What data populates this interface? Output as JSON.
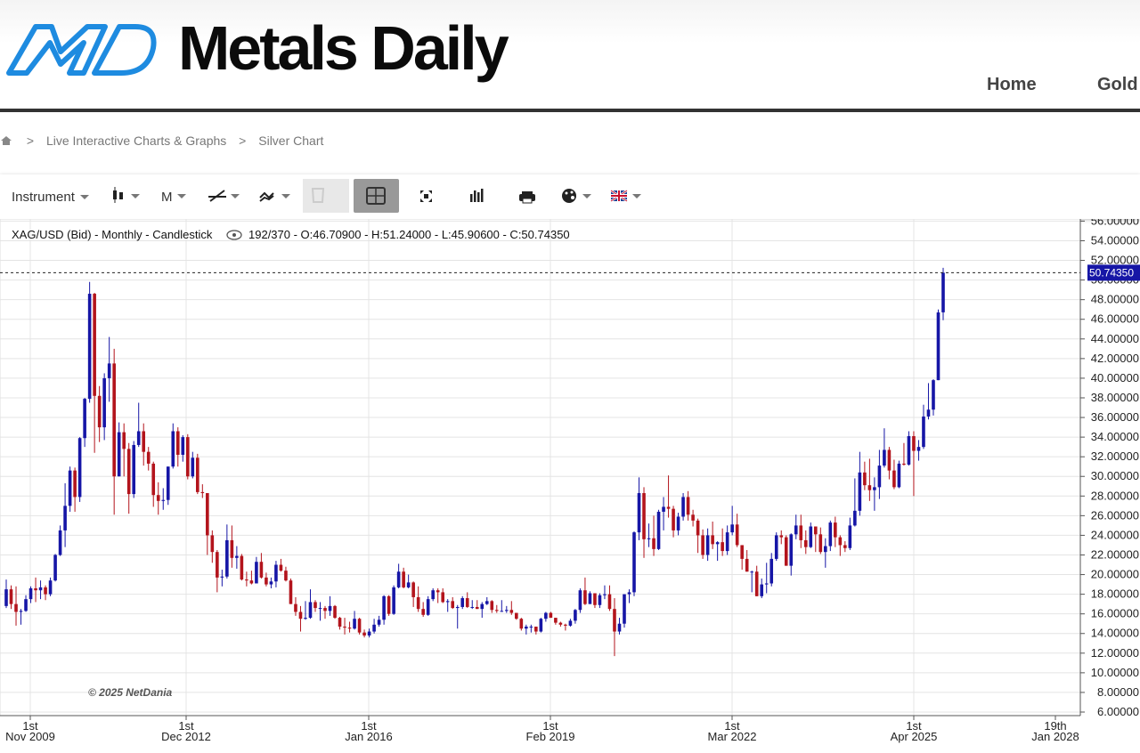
{
  "header": {
    "brand": "Metals Daily",
    "nav": [
      "Home",
      "Gold"
    ]
  },
  "breadcrumb": {
    "separator": ">",
    "items": [
      "Live Interactive Charts & Graphs",
      "Silver Chart"
    ]
  },
  "toolbar": {
    "instrument": "Instrument",
    "period": "M"
  },
  "chart_data": {
    "type": "candlestick",
    "title": "XAG/USD (Bid) - Monthly - Candlestick",
    "info": "192/370 - O:46.70900 - H:51.24000 - L:45.90600 - C:50.74350",
    "copyright": "© 2025 NetDania",
    "last_label": "50.74350",
    "up_color": "#1616a6",
    "down_color": "#b3141c",
    "ylim": [
      6,
      56.4
    ],
    "yticks": [
      {
        "value": 56,
        "label": "56.00000"
      },
      {
        "value": 54,
        "label": "54.00000"
      },
      {
        "value": 52,
        "label": "52.00000"
      },
      {
        "value": 50,
        "label": "50.00000"
      },
      {
        "value": 48,
        "label": "48.00000"
      },
      {
        "value": 46,
        "label": "46.00000"
      },
      {
        "value": 44,
        "label": "44.00000"
      },
      {
        "value": 42,
        "label": "42.00000"
      },
      {
        "value": 40,
        "label": "40.00000"
      },
      {
        "value": 38,
        "label": "38.00000"
      },
      {
        "value": 36,
        "label": "36.00000"
      },
      {
        "value": 34,
        "label": "34.00000"
      },
      {
        "value": 32,
        "label": "32.00000"
      },
      {
        "value": 30,
        "label": "30.00000"
      },
      {
        "value": 28,
        "label": "28.00000"
      },
      {
        "value": 26,
        "label": "26.00000"
      },
      {
        "value": 24,
        "label": "24.00000"
      },
      {
        "value": 22,
        "label": "22.00000"
      },
      {
        "value": 20,
        "label": "20.00000"
      },
      {
        "value": 18,
        "label": "18.00000"
      },
      {
        "value": 16,
        "label": "16.00000"
      },
      {
        "value": 14,
        "label": "14.00000"
      },
      {
        "value": 12,
        "label": "12.00000"
      },
      {
        "value": 10,
        "label": "10.00000"
      },
      {
        "value": 8,
        "label": "8.00000"
      },
      {
        "value": 6,
        "label": "6.00000"
      }
    ],
    "xtick_labels": [
      [
        "1st",
        "Nov 2009"
      ],
      [
        "1st",
        "Dec 2012"
      ],
      [
        "1st",
        "Jan 2016"
      ],
      [
        "1st",
        "Feb 2019"
      ],
      [
        "1st",
        "Mar 2022"
      ],
      [
        "1st",
        "Apr 2025"
      ],
      [
        "19th",
        "Jan 2028"
      ]
    ],
    "candles": [
      [
        16.8,
        19.5,
        16.6,
        18.5
      ],
      [
        18.5,
        18.9,
        16.5,
        17.0
      ],
      [
        17.0,
        18.8,
        14.8,
        16.2
      ],
      [
        16.2,
        16.5,
        14.9,
        16.3
      ],
      [
        16.3,
        17.9,
        16.2,
        17.5
      ],
      [
        17.5,
        18.8,
        17.1,
        18.6
      ],
      [
        18.6,
        19.7,
        17.2,
        18.4
      ],
      [
        18.4,
        19.4,
        17.5,
        18.7
      ],
      [
        18.7,
        18.9,
        17.4,
        18.0
      ],
      [
        18.0,
        19.7,
        17.8,
        19.4
      ],
      [
        19.4,
        22.1,
        19.3,
        22.0
      ],
      [
        22.0,
        25.0,
        21.9,
        24.5
      ],
      [
        24.5,
        29.3,
        22.8,
        27.0
      ],
      [
        27.0,
        31.0,
        26.4,
        30.6
      ],
      [
        30.6,
        30.9,
        26.4,
        27.9
      ],
      [
        27.9,
        34.0,
        27.4,
        33.9
      ],
      [
        33.9,
        38.0,
        33.0,
        37.9
      ],
      [
        37.9,
        49.8,
        37.5,
        48.6
      ],
      [
        48.6,
        48.7,
        32.4,
        38.2
      ],
      [
        38.2,
        39.2,
        33.5,
        35.0
      ],
      [
        35.0,
        40.5,
        33.7,
        40.0
      ],
      [
        40.0,
        44.2,
        37.6,
        41.5
      ],
      [
        41.5,
        43.0,
        26.1,
        30.0
      ],
      [
        30.0,
        35.5,
        30.0,
        34.5
      ],
      [
        34.5,
        35.4,
        30.0,
        32.8
      ],
      [
        32.8,
        33.4,
        26.2,
        28.2
      ],
      [
        28.2,
        33.6,
        27.8,
        33.2
      ],
      [
        33.2,
        37.5,
        33.0,
        34.6
      ],
      [
        34.6,
        35.4,
        31.1,
        32.5
      ],
      [
        32.5,
        33.0,
        30.6,
        31.3
      ],
      [
        31.3,
        31.5,
        26.9,
        28.1
      ],
      [
        28.1,
        29.4,
        26.1,
        27.5
      ],
      [
        27.5,
        28.8,
        26.6,
        27.6
      ],
      [
        27.6,
        31.0,
        27.1,
        31.0
      ],
      [
        31.0,
        35.4,
        30.8,
        34.6
      ],
      [
        34.6,
        35.0,
        31.0,
        32.2
      ],
      [
        32.2,
        34.2,
        31.5,
        34.0
      ],
      [
        34.0,
        34.3,
        29.7,
        30.0
      ],
      [
        30.0,
        32.5,
        29.8,
        31.9
      ],
      [
        31.9,
        32.3,
        28.2,
        28.4
      ],
      [
        28.4,
        29.2,
        27.8,
        28.3
      ],
      [
        28.3,
        28.3,
        22.0,
        24.0
      ],
      [
        24.0,
        24.5,
        21.2,
        22.3
      ],
      [
        22.3,
        22.5,
        18.2,
        19.7
      ],
      [
        19.7,
        20.5,
        18.8,
        19.8
      ],
      [
        19.8,
        25.1,
        19.6,
        23.5
      ],
      [
        23.5,
        25.0,
        20.7,
        21.7
      ],
      [
        21.7,
        22.9,
        20.6,
        21.9
      ],
      [
        21.9,
        22.1,
        19.4,
        19.5
      ],
      [
        19.5,
        20.3,
        18.8,
        19.4
      ],
      [
        19.4,
        20.4,
        19.0,
        19.1
      ],
      [
        19.1,
        21.8,
        19.1,
        21.3
      ],
      [
        21.3,
        22.2,
        19.6,
        19.7
      ],
      [
        19.7,
        20.2,
        18.8,
        19.0
      ],
      [
        19.0,
        19.7,
        18.6,
        19.3
      ],
      [
        19.3,
        21.4,
        18.7,
        21.0
      ],
      [
        21.0,
        21.6,
        20.3,
        20.4
      ],
      [
        20.4,
        20.8,
        19.3,
        19.4
      ],
      [
        19.4,
        19.6,
        17.0,
        17.0
      ],
      [
        17.0,
        17.7,
        15.8,
        16.2
      ],
      [
        16.2,
        16.8,
        14.2,
        15.5
      ],
      [
        15.5,
        17.3,
        15.4,
        15.6
      ],
      [
        15.6,
        18.5,
        15.5,
        17.2
      ],
      [
        17.2,
        17.4,
        16.2,
        16.6
      ],
      [
        16.6,
        17.2,
        15.3,
        16.6
      ],
      [
        16.6,
        16.8,
        15.5,
        16.3
      ],
      [
        16.3,
        17.8,
        15.8,
        16.8
      ],
      [
        16.8,
        16.9,
        15.5,
        15.6
      ],
      [
        15.6,
        15.7,
        14.4,
        14.7
      ],
      [
        14.7,
        15.6,
        13.9,
        14.6
      ],
      [
        14.6,
        15.2,
        14.1,
        14.5
      ],
      [
        14.5,
        16.3,
        14.4,
        15.5
      ],
      [
        15.5,
        15.6,
        13.9,
        14.1
      ],
      [
        14.1,
        14.4,
        13.6,
        13.8
      ],
      [
        13.8,
        14.5,
        13.6,
        14.2
      ],
      [
        14.2,
        15.5,
        14.0,
        14.9
      ],
      [
        14.9,
        15.8,
        14.7,
        15.4
      ],
      [
        15.4,
        17.9,
        14.9,
        17.8
      ],
      [
        17.8,
        17.9,
        15.8,
        16.0
      ],
      [
        16.0,
        18.9,
        15.9,
        18.7
      ],
      [
        18.7,
        21.1,
        18.6,
        20.3
      ],
      [
        20.3,
        20.7,
        18.6,
        18.7
      ],
      [
        18.7,
        20.0,
        18.6,
        19.2
      ],
      [
        19.2,
        19.3,
        16.7,
        17.7
      ],
      [
        17.7,
        18.8,
        16.2,
        16.5
      ],
      [
        16.5,
        17.2,
        15.7,
        15.9
      ],
      [
        15.9,
        17.8,
        15.8,
        17.5
      ],
      [
        17.5,
        18.6,
        17.3,
        18.4
      ],
      [
        18.4,
        18.6,
        17.1,
        18.2
      ],
      [
        18.2,
        18.6,
        17.1,
        17.2
      ],
      [
        17.2,
        17.5,
        16.2,
        17.3
      ],
      [
        17.3,
        17.7,
        16.5,
        16.6
      ],
      [
        16.6,
        16.9,
        14.5,
        16.7
      ],
      [
        16.7,
        17.8,
        16.5,
        17.6
      ],
      [
        17.6,
        18.2,
        16.6,
        16.7
      ],
      [
        16.7,
        17.4,
        16.5,
        16.7
      ],
      [
        16.7,
        17.4,
        16.5,
        16.5
      ],
      [
        16.5,
        17.2,
        15.6,
        17.0
      ],
      [
        17.0,
        17.7,
        16.9,
        17.3
      ],
      [
        17.3,
        17.4,
        16.1,
        16.4
      ],
      [
        16.4,
        16.9,
        16.1,
        16.3
      ],
      [
        16.3,
        17.4,
        16.2,
        16.3
      ],
      [
        16.3,
        16.8,
        16.1,
        16.4
      ],
      [
        16.4,
        17.3,
        15.9,
        16.1
      ],
      [
        16.1,
        16.1,
        15.4,
        15.5
      ],
      [
        15.5,
        15.6,
        14.3,
        14.5
      ],
      [
        14.5,
        14.9,
        13.9,
        14.7
      ],
      [
        14.7,
        14.9,
        14.1,
        14.7
      ],
      [
        14.7,
        14.7,
        13.9,
        14.2
      ],
      [
        14.2,
        15.6,
        14.1,
        15.5
      ],
      [
        15.5,
        16.2,
        15.2,
        16.1
      ],
      [
        16.1,
        16.2,
        15.6,
        15.6
      ],
      [
        15.6,
        15.6,
        14.9,
        15.1
      ],
      [
        15.1,
        15.2,
        14.7,
        14.9
      ],
      [
        14.9,
        15.0,
        14.3,
        14.8
      ],
      [
        14.8,
        15.5,
        14.7,
        15.3
      ],
      [
        15.3,
        16.5,
        15.0,
        16.4
      ],
      [
        16.4,
        18.6,
        16.1,
        18.4
      ],
      [
        18.4,
        19.7,
        16.9,
        17.0
      ],
      [
        17.0,
        18.3,
        17.0,
        18.1
      ],
      [
        18.1,
        18.1,
        16.6,
        16.9
      ],
      [
        16.9,
        18.1,
        16.6,
        17.9
      ],
      [
        17.9,
        18.9,
        17.5,
        18.0
      ],
      [
        18.0,
        18.9,
        16.3,
        16.5
      ],
      [
        16.5,
        17.6,
        11.7,
        14.2
      ],
      [
        14.2,
        15.6,
        13.9,
        15.0
      ],
      [
        15.0,
        18.0,
        14.6,
        18.0
      ],
      [
        18.0,
        18.5,
        17.1,
        18.2
      ],
      [
        18.2,
        24.4,
        17.8,
        24.3
      ],
      [
        24.3,
        29.9,
        23.5,
        28.3
      ],
      [
        28.3,
        28.9,
        21.7,
        23.6
      ],
      [
        23.6,
        25.2,
        22.8,
        23.7
      ],
      [
        23.7,
        26.0,
        21.9,
        22.6
      ],
      [
        22.6,
        26.6,
        22.5,
        26.4
      ],
      [
        26.4,
        27.9,
        24.5,
        26.9
      ],
      [
        26.9,
        30.1,
        25.8,
        26.7
      ],
      [
        26.7,
        27.0,
        23.8,
        24.5
      ],
      [
        24.5,
        26.3,
        24.0,
        25.9
      ],
      [
        25.9,
        28.3,
        25.5,
        27.9
      ],
      [
        27.9,
        28.5,
        25.5,
        26.1
      ],
      [
        26.1,
        26.6,
        24.9,
        25.5
      ],
      [
        25.5,
        25.7,
        22.2,
        24.0
      ],
      [
        24.0,
        24.6,
        21.6,
        22.0
      ],
      [
        22.0,
        24.7,
        21.4,
        24.0
      ],
      [
        24.0,
        25.4,
        22.6,
        23.1
      ],
      [
        23.1,
        23.4,
        21.4,
        23.3
      ],
      [
        23.3,
        24.7,
        21.9,
        22.4
      ],
      [
        22.4,
        25.0,
        22.0,
        24.3
      ],
      [
        24.3,
        27.0,
        24.0,
        25.1
      ],
      [
        25.1,
        26.2,
        22.8,
        23.0
      ],
      [
        23.0,
        23.0,
        20.5,
        21.6
      ],
      [
        21.6,
        22.5,
        20.3,
        20.3
      ],
      [
        20.3,
        20.4,
        18.2,
        20.3
      ],
      [
        20.3,
        20.9,
        17.8,
        17.8
      ],
      [
        17.8,
        19.6,
        17.6,
        19.0
      ],
      [
        19.0,
        21.2,
        18.1,
        19.1
      ],
      [
        19.1,
        22.2,
        18.8,
        21.6
      ],
      [
        21.6,
        24.3,
        21.4,
        24.0
      ],
      [
        24.0,
        24.5,
        23.1,
        23.8
      ],
      [
        23.8,
        24.0,
        20.9,
        20.9
      ],
      [
        20.9,
        24.2,
        19.9,
        24.1
      ],
      [
        24.1,
        26.1,
        23.6,
        25.0
      ],
      [
        25.0,
        26.1,
        22.7,
        23.5
      ],
      [
        23.5,
        24.5,
        22.1,
        22.8
      ],
      [
        22.8,
        25.3,
        22.7,
        24.9
      ],
      [
        24.9,
        24.9,
        22.3,
        24.1
      ],
      [
        24.1,
        24.8,
        22.1,
        22.3
      ],
      [
        22.3,
        23.7,
        20.7,
        22.9
      ],
      [
        22.9,
        25.5,
        22.4,
        25.3
      ],
      [
        25.3,
        25.9,
        22.8,
        23.8
      ],
      [
        23.8,
        24.0,
        21.9,
        23.0
      ],
      [
        23.0,
        23.4,
        22.3,
        22.7
      ],
      [
        22.7,
        25.8,
        22.5,
        25.0
      ],
      [
        25.0,
        29.8,
        24.9,
        26.5
      ],
      [
        26.5,
        32.5,
        26.0,
        30.4
      ],
      [
        30.4,
        31.5,
        28.6,
        29.1
      ],
      [
        29.1,
        31.8,
        27.5,
        28.6
      ],
      [
        28.6,
        29.9,
        26.5,
        28.9
      ],
      [
        28.9,
        32.7,
        27.7,
        31.1
      ],
      [
        31.1,
        34.9,
        30.9,
        32.7
      ],
      [
        32.7,
        33.0,
        29.7,
        30.6
      ],
      [
        30.6,
        31.7,
        28.7,
        28.9
      ],
      [
        28.9,
        31.6,
        28.8,
        31.3
      ],
      [
        31.3,
        33.4,
        31.1,
        31.2
      ],
      [
        31.2,
        34.6,
        31.1,
        34.1
      ],
      [
        34.1,
        34.6,
        28.0,
        32.6
      ],
      [
        32.6,
        33.7,
        31.6,
        33.0
      ],
      [
        33.0,
        37.3,
        32.8,
        36.1
      ],
      [
        36.1,
        39.5,
        35.8,
        36.8
      ],
      [
        36.8,
        39.9,
        36.2,
        39.8
      ],
      [
        39.8,
        47.0,
        39.8,
        46.7
      ],
      [
        46.709,
        51.24,
        45.906,
        50.7435
      ]
    ]
  }
}
